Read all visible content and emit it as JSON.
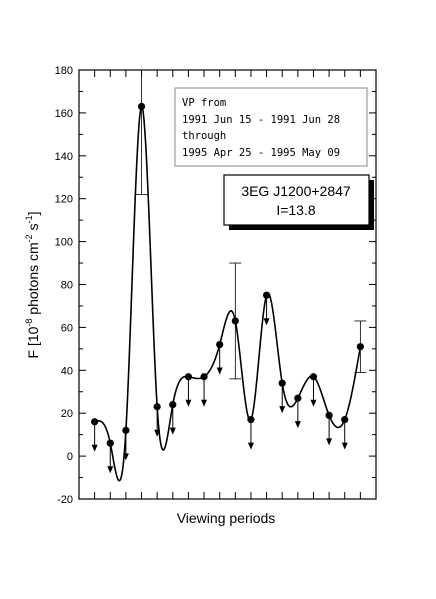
{
  "chart_data": {
    "type": "line",
    "title": "",
    "xlabel": "Viewing periods",
    "ylabel_parts": [
      "F [10",
      "-8",
      " photons cm",
      "-2",
      " s",
      "-1",
      "]"
    ],
    "ylim": [
      -20,
      180
    ],
    "yticks": [
      -20,
      0,
      20,
      40,
      60,
      80,
      100,
      120,
      140,
      160,
      180
    ],
    "xlim": [
      0,
      19
    ],
    "x_tick_count": 18,
    "note_lines": [
      "VP from",
      "1991 Jun 15 - 1991 Jun 28",
      "through",
      "1995 Apr 25 - 1995 May 09"
    ],
    "source_lines": [
      "3EG J1200+2847",
      "I=13.8"
    ],
    "smooth_curve": true,
    "series": [
      {
        "points": [
          {
            "x": 1,
            "y": 16,
            "limit": "upper",
            "err": null
          },
          {
            "x": 2,
            "y": 6,
            "limit": "upper",
            "err": null
          },
          {
            "x": 3,
            "y": 12,
            "limit": "upper",
            "err": null
          },
          {
            "x": 4,
            "y": 163,
            "limit": null,
            "err": [
              122,
              180
            ]
          },
          {
            "x": 5,
            "y": 23,
            "limit": "upper",
            "err": null
          },
          {
            "x": 6,
            "y": 24,
            "limit": "upper",
            "err": null
          },
          {
            "x": 7,
            "y": 37,
            "limit": "upper",
            "err": null
          },
          {
            "x": 8,
            "y": 37,
            "limit": "upper",
            "err": null
          },
          {
            "x": 9,
            "y": 52,
            "limit": "upper",
            "err": null
          },
          {
            "x": 10,
            "y": 63,
            "limit": null,
            "err": [
              36,
              90
            ]
          },
          {
            "x": 11,
            "y": 17,
            "limit": "upper",
            "err": null
          },
          {
            "x": 12,
            "y": 75,
            "limit": "upper",
            "err": null
          },
          {
            "x": 13,
            "y": 34,
            "limit": "upper",
            "err": null
          },
          {
            "x": 14,
            "y": 27,
            "limit": "upper",
            "err": null
          },
          {
            "x": 15,
            "y": 37,
            "limit": "upper",
            "err": null
          },
          {
            "x": 16,
            "y": 19,
            "limit": "upper",
            "err": null
          },
          {
            "x": 17,
            "y": 17,
            "limit": "upper",
            "err": null
          },
          {
            "x": 18,
            "y": 51,
            "limit": null,
            "err": [
              39,
              63
            ]
          }
        ]
      }
    ],
    "colors": {
      "line": "#000000",
      "marker": "#000000"
    }
  }
}
